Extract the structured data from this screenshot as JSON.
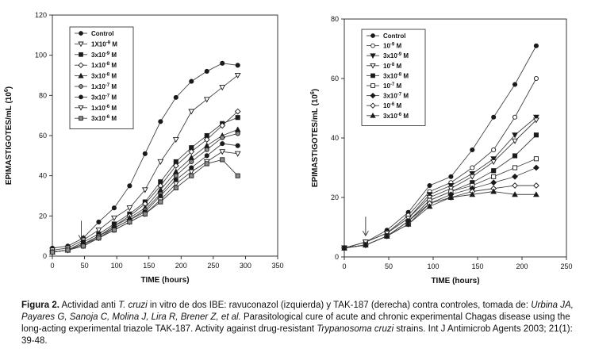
{
  "chart_data": [
    {
      "type": "line",
      "xlabel": "TIME (hours)",
      "ylabel": "EPIMASTIGOTES/mL (10",
      "ylabel_exp": "6",
      "ylabel_close": ")",
      "xlim": [
        0,
        350
      ],
      "ylim": [
        0,
        120
      ],
      "xticks": [
        0,
        50,
        100,
        150,
        200,
        250,
        300,
        350
      ],
      "yticks": [
        0,
        20,
        40,
        60,
        80,
        100,
        120
      ],
      "arrow_x": 45,
      "legend_position": "top-left",
      "x": [
        0,
        24,
        48,
        72,
        96,
        120,
        144,
        168,
        192,
        216,
        240,
        264,
        288
      ],
      "series": [
        {
          "name": "Control",
          "marker": "circle-filled",
          "values": [
            4,
            5,
            9,
            17,
            24,
            35,
            51,
            67,
            79,
            87,
            92,
            96,
            95
          ]
        },
        {
          "base": "1X10",
          "exp": "-9",
          "unit": " M",
          "marker": "triangle-down-open",
          "values": [
            3,
            4,
            8,
            13,
            19,
            24,
            33,
            47,
            58,
            72,
            78,
            84,
            90
          ]
        },
        {
          "base": "3x10",
          "exp": "-9",
          "unit": " M",
          "marker": "square-filled",
          "values": [
            2,
            3,
            7,
            11,
            16,
            21,
            27,
            37,
            47,
            54,
            60,
            66,
            69
          ]
        },
        {
          "base": "1x10",
          "exp": "-8",
          "unit": " M",
          "marker": "diamond-open",
          "values": [
            2,
            3,
            6,
            10,
            15,
            20,
            26,
            35,
            45,
            52,
            58,
            65,
            72
          ]
        },
        {
          "base": "3x10",
          "exp": "-8",
          "unit": " M",
          "marker": "triangle-up-filled",
          "values": [
            2,
            3,
            6,
            10,
            15,
            19,
            24,
            33,
            42,
            49,
            55,
            60,
            63
          ]
        },
        {
          "base": "1x10",
          "exp": "-7",
          "unit": " M",
          "marker": "circle-gray",
          "values": [
            2,
            3,
            6,
            10,
            14,
            18,
            23,
            31,
            40,
            47,
            53,
            59,
            61
          ]
        },
        {
          "base": "3x10",
          "exp": "-7",
          "unit": " M",
          "marker": "circle-filled",
          "values": [
            2,
            3,
            6,
            9,
            14,
            18,
            22,
            30,
            38,
            44,
            50,
            56,
            55
          ]
        },
        {
          "base": "1x10",
          "exp": "-6",
          "unit": " M",
          "marker": "triangle-down-open",
          "values": [
            2,
            3,
            5,
            9,
            13,
            17,
            21,
            28,
            36,
            42,
            47,
            52,
            51
          ]
        },
        {
          "base": "3x10",
          "exp": "-6",
          "unit": " M",
          "marker": "square-gray",
          "values": [
            2,
            3,
            5,
            9,
            13,
            17,
            21,
            27,
            34,
            40,
            46,
            48,
            40
          ]
        }
      ]
    },
    {
      "type": "line",
      "xlabel": "TIME (hours)",
      "ylabel": "EPIMASTIGOTES/mL (10",
      "ylabel_exp": "6",
      "ylabel_close": ")",
      "xlim": [
        0,
        250
      ],
      "ylim": [
        0,
        80
      ],
      "xticks": [
        0,
        50,
        100,
        150,
        200,
        250
      ],
      "yticks": [
        0,
        20,
        40,
        60,
        80
      ],
      "arrow_x": 24,
      "legend_position": "top-left",
      "x": [
        0,
        24,
        48,
        72,
        96,
        120,
        144,
        168,
        192,
        216
      ],
      "series": [
        {
          "name": "Control",
          "marker": "circle-filled",
          "values": [
            3,
            5,
            9,
            15,
            24,
            27,
            36,
            47,
            58,
            71
          ]
        },
        {
          "base": "10",
          "exp": "-9",
          "unit": " M",
          "marker": "circle-open",
          "values": [
            3,
            5,
            8,
            14,
            22,
            25,
            30,
            36,
            47,
            60
          ]
        },
        {
          "base": "3x10",
          "exp": "-9",
          "unit": " M",
          "marker": "triangle-down-filled",
          "values": [
            3,
            5,
            8,
            13,
            21,
            24,
            28,
            33,
            41,
            47
          ]
        },
        {
          "base": "10",
          "exp": "-8",
          "unit": " M",
          "marker": "triangle-down-open",
          "values": [
            3,
            5,
            8,
            13,
            20,
            23,
            27,
            32,
            39,
            46
          ]
        },
        {
          "base": "3x10",
          "exp": "-8",
          "unit": " M",
          "marker": "square-filled",
          "values": [
            3,
            4,
            7,
            12,
            19,
            22,
            25,
            29,
            34,
            41
          ]
        },
        {
          "base": "10",
          "exp": "-7",
          "unit": " M",
          "marker": "square-open",
          "values": [
            3,
            4,
            7,
            12,
            19,
            22,
            24,
            27,
            30,
            33
          ]
        },
        {
          "base": "3x10",
          "exp": "-7",
          "unit": " M",
          "marker": "diamond-filled",
          "values": [
            3,
            4,
            7,
            12,
            18,
            21,
            23,
            25,
            27,
            30
          ]
        },
        {
          "base": "10",
          "exp": "-6",
          "unit": " M",
          "marker": "diamond-open",
          "values": [
            3,
            4,
            7,
            11,
            18,
            20,
            22,
            23,
            24,
            24
          ]
        },
        {
          "base": "3x10",
          "exp": "-6",
          "unit": " M",
          "marker": "triangle-up-filled",
          "values": [
            3,
            4,
            7,
            11,
            17,
            20,
            21,
            22,
            21,
            21
          ]
        }
      ]
    }
  ],
  "caption": {
    "label": "Figura 2.",
    "t1": " Actividad anti ",
    "italic1": "T. cruzi",
    "t2": " in vitro de dos IBE: ravuconazol (izquierda) y TAK-187 (derecha) contra controles, tomada de: ",
    "authors": "Urbina JA, Payares G, Sanoja C, Molina J, Lira R, Brener Z, et al.",
    "t3": " Parasitological cure of acute and chronic experimental Chagas disease using the long-acting experimental triazole TAK-187. Activity against drug-resistant ",
    "italic2": "Trypanosoma cruzi",
    "t4": " strains. Int J Antimicrob Agents 2003; 21(1): 39-48."
  }
}
